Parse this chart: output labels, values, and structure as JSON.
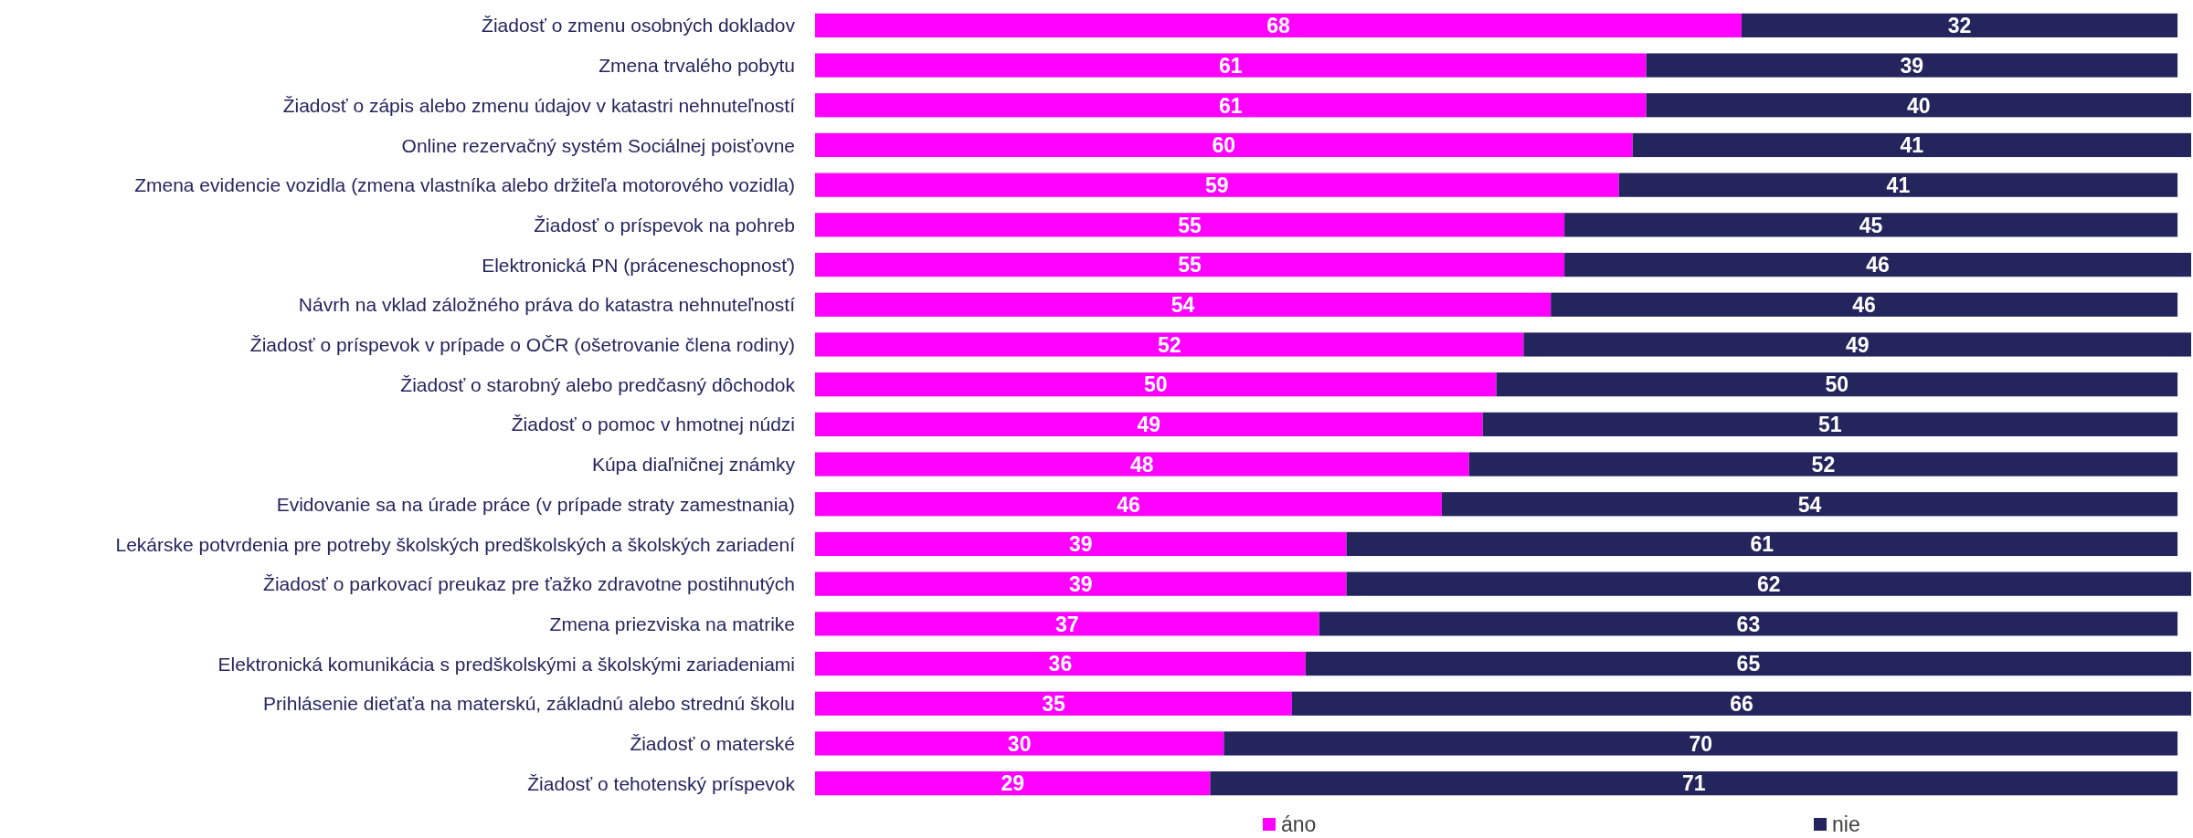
{
  "chart_data": {
    "type": "bar",
    "orientation": "horizontal",
    "stacked": true,
    "data_labels": true,
    "legend": "bottom",
    "categories": [
      "Žiadosť o zmenu osobných dokladov",
      "Zmena trvalého pobytu",
      "Žiadosť o zápis alebo zmenu údajov v katastri nehnuteľností",
      "Online rezervačný systém Sociálnej poisťovne",
      "Zmena evidencie vozidla (zmena vlastníka alebo držiteľa motorového vozidla)",
      "Žiadosť o príspevok na pohreb",
      "Elektronická PN (práceneschopnosť)",
      "Návrh na vklad záložného práva do katastra nehnuteľností",
      "Žiadosť o príspevok v prípade o OČR (ošetrovanie člena rodiny)",
      "Žiadosť o starobný alebo predčasný dôchodok",
      "Žiadosť o pomoc v hmotnej núdzi",
      "Kúpa diaľničnej známky",
      "Evidovanie sa na úrade práce (v prípade straty zamestnania)",
      "Lekárske potvrdenia pre potreby školských predškolských a školských zariadení",
      "Žiadosť o parkovací preukaz pre ťažko zdravotne postihnutých",
      "Zmena priezviska na matrike",
      "Elektronická komunikácia s predškolskými a školskými zariadeniami",
      "Prihlásenie dieťaťa na materskú, základnú alebo strednú školu",
      "Žiadosť o materské",
      "Žiadosť o tehotenský príspevok"
    ],
    "series": [
      {
        "name": "áno",
        "color": "#ff00ff",
        "values": [
          68,
          61,
          61,
          60,
          59,
          55,
          55,
          54,
          52,
          50,
          49,
          48,
          46,
          39,
          39,
          37,
          36,
          35,
          30,
          29
        ]
      },
      {
        "name": "nie",
        "color": "#25255e",
        "values": [
          32,
          39,
          40,
          41,
          41,
          45,
          46,
          46,
          49,
          50,
          51,
          52,
          54,
          61,
          62,
          63,
          65,
          66,
          70,
          71
        ]
      }
    ]
  }
}
